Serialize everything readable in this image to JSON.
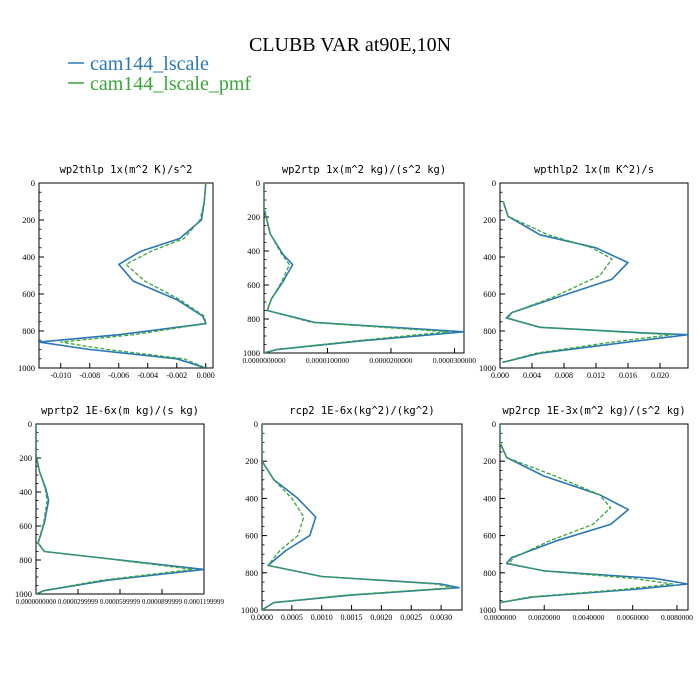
{
  "figure": {
    "title": "CLUBB VAR at90E,10N",
    "legend": [
      {
        "name": "cam144_lscale",
        "color": "#2a78b8",
        "dash": "solid"
      },
      {
        "name": "cam144_lscale_pmf",
        "color": "#3aa63a",
        "dash": "dashed"
      }
    ],
    "legend_placement": "top-left"
  },
  "chart_data": [
    {
      "type": "line",
      "title": "wp2thlp   1x(m^2 K)/s^2",
      "xlim": [
        -0.0115,
        0.0005
      ],
      "xticks": [
        -0.01,
        -0.008,
        -0.006,
        -0.004,
        -0.002,
        0.0
      ],
      "xtick_labels": [
        "-0.010",
        "-0.008",
        "-0.006",
        "-0.004",
        "-0.002",
        "0.000"
      ],
      "ylim": [
        1000,
        0
      ],
      "yticks": [
        0,
        200,
        400,
        600,
        800,
        1000
      ],
      "ytick_labels": [
        "0",
        "200",
        "400",
        "600",
        "800",
        "1000"
      ],
      "series": [
        {
          "name": "cam144_lscale",
          "points": [
            [
              0.0,
              0
            ],
            [
              -0.0001,
              100
            ],
            [
              -0.0003,
              200
            ],
            [
              -0.0018,
              300
            ],
            [
              -0.0045,
              370
            ],
            [
              -0.006,
              440
            ],
            [
              -0.005,
              530
            ],
            [
              -0.002,
              630
            ],
            [
              -0.0002,
              720
            ],
            [
              0.0,
              760
            ],
            [
              -0.006,
              820
            ],
            [
              -0.0115,
              860
            ],
            [
              -0.008,
              900
            ],
            [
              -0.002,
              950
            ],
            [
              0.0,
              1000
            ]
          ]
        },
        {
          "name": "cam144_lscale_pmf",
          "points": [
            [
              0.0,
              0
            ],
            [
              -0.0001,
              100
            ],
            [
              -0.0004,
              200
            ],
            [
              -0.0015,
              300
            ],
            [
              -0.0038,
              370
            ],
            [
              -0.0055,
              440
            ],
            [
              -0.0042,
              530
            ],
            [
              -0.0018,
              630
            ],
            [
              -0.0001,
              720
            ],
            [
              0.0,
              760
            ],
            [
              -0.005,
              820
            ],
            [
              -0.01,
              860
            ],
            [
              -0.0068,
              900
            ],
            [
              -0.0015,
              950
            ],
            [
              0.0,
              1000
            ]
          ]
        }
      ]
    },
    {
      "type": "line",
      "title": "wp2rtp   1x(m^2 kg)/(s^2 kg)",
      "xlim": [
        0,
        3.15e-05
      ],
      "xticks": [
        0,
        1e-05,
        2e-05,
        3e-05
      ],
      "xtick_labels": [
        "0.0000000000",
        "0.0000100000",
        "0.0000200000",
        "0.0000300000"
      ],
      "ylim": [
        1000,
        0
      ],
      "yticks": [
        0,
        200,
        400,
        600,
        800,
        1000
      ],
      "ytick_labels": [
        "0",
        "200",
        "400",
        "600",
        "800",
        "1000"
      ],
      "series": [
        {
          "name": "cam144_lscale",
          "points": [
            [
              0,
              0
            ],
            [
              0,
              150
            ],
            [
              1e-06,
              300
            ],
            [
              3e-06,
              420
            ],
            [
              4.5e-06,
              480
            ],
            [
              3e-06,
              580
            ],
            [
              1.2e-06,
              680
            ],
            [
              5e-07,
              750
            ],
            [
              8e-06,
              820
            ],
            [
              3.15e-05,
              875
            ],
            [
              1.5e-05,
              930
            ],
            [
              2e-06,
              980
            ],
            [
              0,
              1000
            ]
          ]
        },
        {
          "name": "cam144_lscale_pmf",
          "points": [
            [
              0,
              0
            ],
            [
              0,
              150
            ],
            [
              1e-06,
              300
            ],
            [
              2.8e-06,
              420
            ],
            [
              4e-06,
              480
            ],
            [
              2.8e-06,
              580
            ],
            [
              1.2e-06,
              680
            ],
            [
              5e-07,
              750
            ],
            [
              7.5e-06,
              820
            ],
            [
              2.9e-05,
              875
            ],
            [
              1.4e-05,
              930
            ],
            [
              1.8e-06,
              980
            ],
            [
              0,
              1000
            ]
          ]
        }
      ]
    },
    {
      "type": "line",
      "title": "wpthlp2   1x(m K^2)/s",
      "xlim": [
        0,
        0.0235
      ],
      "xticks": [
        0,
        0.004,
        0.008,
        0.012,
        0.016,
        0.02
      ],
      "xtick_labels": [
        "0.000",
        "0.004",
        "0.008",
        "0.012",
        "0.016",
        "0.020"
      ],
      "ylim": [
        1000,
        0
      ],
      "yticks": [
        0,
        200,
        400,
        600,
        800,
        1000
      ],
      "ytick_labels": [
        "0",
        "200",
        "400",
        "600",
        "800",
        "1000"
      ],
      "series": [
        {
          "name": "cam144_lscale",
          "points": [
            [
              0.0004,
              100
            ],
            [
              0.001,
              180
            ],
            [
              0.005,
              280
            ],
            [
              0.012,
              350
            ],
            [
              0.016,
              430
            ],
            [
              0.014,
              520
            ],
            [
              0.007,
              620
            ],
            [
              0.0015,
              700
            ],
            [
              0.0008,
              730
            ],
            [
              0.005,
              780
            ],
            [
              0.018,
              810
            ],
            [
              0.0235,
              820
            ],
            [
              0.016,
              860
            ],
            [
              0.005,
              920
            ],
            [
              0.0003,
              970
            ]
          ]
        },
        {
          "name": "cam144_lscale_pmf",
          "points": [
            [
              0.0004,
              100
            ],
            [
              0.001,
              180
            ],
            [
              0.006,
              280
            ],
            [
              0.0115,
              350
            ],
            [
              0.014,
              410
            ],
            [
              0.0125,
              500
            ],
            [
              0.0065,
              620
            ],
            [
              0.0015,
              700
            ],
            [
              0.001,
              730
            ],
            [
              0.005,
              780
            ],
            [
              0.017,
              810
            ],
            [
              0.0215,
              820
            ],
            [
              0.014,
              860
            ],
            [
              0.0045,
              920
            ],
            [
              0.0003,
              970
            ]
          ]
        }
      ]
    },
    {
      "type": "line",
      "title": "wprtp2   1E-6x(m kg)/(s kg)",
      "xlim": [
        0,
        0.00012
      ],
      "xticks": [
        0,
        3e-05,
        6e-05,
        9e-05,
        0.00012
      ],
      "xtick_labels": [
        "0.0000000000",
        "0.0000299999",
        "0.0000599999",
        "0.0000899999",
        "0.0001199999"
      ],
      "ylim": [
        1000,
        0
      ],
      "yticks": [
        0,
        200,
        400,
        600,
        800,
        1000
      ],
      "ytick_labels": [
        "0",
        "200",
        "400",
        "600",
        "800",
        "1000"
      ],
      "series": [
        {
          "name": "cam144_lscale",
          "points": [
            [
              0,
              0
            ],
            [
              0,
              180
            ],
            [
              2.5e-06,
              280
            ],
            [
              7e-06,
              380
            ],
            [
              9e-06,
              450
            ],
            [
              6e-06,
              580
            ],
            [
              1.5e-06,
              700
            ],
            [
              6e-06,
              750
            ],
            [
              6e-05,
              800
            ],
            [
              0.00012,
              855
            ],
            [
              5e-05,
              920
            ],
            [
              6e-06,
              980
            ],
            [
              0,
              1000
            ]
          ]
        },
        {
          "name": "cam144_lscale_pmf",
          "points": [
            [
              0,
              0
            ],
            [
              0,
              180
            ],
            [
              2.5e-06,
              280
            ],
            [
              6.5e-06,
              380
            ],
            [
              8e-06,
              450
            ],
            [
              5.5e-06,
              580
            ],
            [
              1.5e-06,
              700
            ],
            [
              6e-06,
              750
            ],
            [
              5.8e-05,
              800
            ],
            [
              0.000112,
              855
            ],
            [
              4.6e-05,
              920
            ],
            [
              5.5e-06,
              980
            ],
            [
              0,
              1000
            ]
          ]
        }
      ]
    },
    {
      "type": "line",
      "title": "rcp2   1E-6x(kg^2)/(kg^2)",
      "xlim": [
        0,
        0.00335
      ],
      "xticks": [
        0,
        0.0005,
        0.001,
        0.0015,
        0.002,
        0.0025,
        0.003
      ],
      "xtick_labels": [
        "0.0000",
        "0.0005",
        "0.0010",
        "0.0015",
        "0.0020",
        "0.0025",
        "0.0030"
      ],
      "ylim": [
        1000,
        0
      ],
      "yticks": [
        0,
        200,
        400,
        600,
        800,
        1000
      ],
      "ytick_labels": [
        "0",
        "200",
        "400",
        "600",
        "800",
        "1000"
      ],
      "series": [
        {
          "name": "cam144_lscale",
          "points": [
            [
              0,
              0
            ],
            [
              0,
              200
            ],
            [
              0.0002,
              300
            ],
            [
              0.0006,
              400
            ],
            [
              0.0009,
              500
            ],
            [
              0.0008,
              600
            ],
            [
              0.0004,
              680
            ],
            [
              0.0001,
              760
            ],
            [
              0.001,
              820
            ],
            [
              0.003,
              860
            ],
            [
              0.0033,
              880
            ],
            [
              0.0015,
              920
            ],
            [
              0.0002,
              960
            ],
            [
              0,
              1000
            ]
          ]
        },
        {
          "name": "cam144_lscale_pmf",
          "points": [
            [
              0,
              0
            ],
            [
              0,
              200
            ],
            [
              0.0002,
              300
            ],
            [
              0.0005,
              400
            ],
            [
              0.0007,
              500
            ],
            [
              0.0006,
              600
            ],
            [
              0.0003,
              680
            ],
            [
              0.0001,
              760
            ],
            [
              0.001,
              820
            ],
            [
              0.0029,
              860
            ],
            [
              0.0032,
              880
            ],
            [
              0.0014,
              920
            ],
            [
              0.0002,
              960
            ],
            [
              0,
              1000
            ]
          ]
        }
      ]
    },
    {
      "type": "line",
      "title": "wp2rcp   1E-3x(m^2 kg)/(s^2 kg)",
      "xlim": [
        0,
        0.0085
      ],
      "xticks": [
        0,
        0.002,
        0.004,
        0.006,
        0.008
      ],
      "xtick_labels": [
        "0.0000000",
        "0.0020000",
        "0.0040000",
        "0.0060000",
        "0.0080000"
      ],
      "ylim": [
        1000,
        0
      ],
      "yticks": [
        0,
        200,
        400,
        600,
        800,
        1000
      ],
      "ytick_labels": [
        "0",
        "200",
        "400",
        "600",
        "800",
        "1000"
      ],
      "series": [
        {
          "name": "cam144_lscale",
          "points": [
            [
              0,
              0
            ],
            [
              0,
              100
            ],
            [
              0.0003,
              180
            ],
            [
              0.002,
              280
            ],
            [
              0.0045,
              380
            ],
            [
              0.0058,
              460
            ],
            [
              0.005,
              540
            ],
            [
              0.0025,
              630
            ],
            [
              0.0005,
              720
            ],
            [
              0.0003,
              750
            ],
            [
              0.002,
              790
            ],
            [
              0.007,
              830
            ],
            [
              0.0085,
              860
            ],
            [
              0.006,
              890
            ],
            [
              0.0015,
              930
            ],
            [
              0,
              960
            ]
          ]
        },
        {
          "name": "cam144_lscale_pmf",
          "points": [
            [
              0,
              0
            ],
            [
              0,
              100
            ],
            [
              0.0003,
              180
            ],
            [
              0.0025,
              280
            ],
            [
              0.0045,
              380
            ],
            [
              0.005,
              450
            ],
            [
              0.0042,
              540
            ],
            [
              0.0022,
              630
            ],
            [
              0.0006,
              720
            ],
            [
              0.0004,
              750
            ],
            [
              0.002,
              790
            ],
            [
              0.006,
              830
            ],
            [
              0.0078,
              860
            ],
            [
              0.0055,
              890
            ],
            [
              0.0013,
              930
            ],
            [
              0,
              960
            ]
          ]
        }
      ]
    }
  ]
}
